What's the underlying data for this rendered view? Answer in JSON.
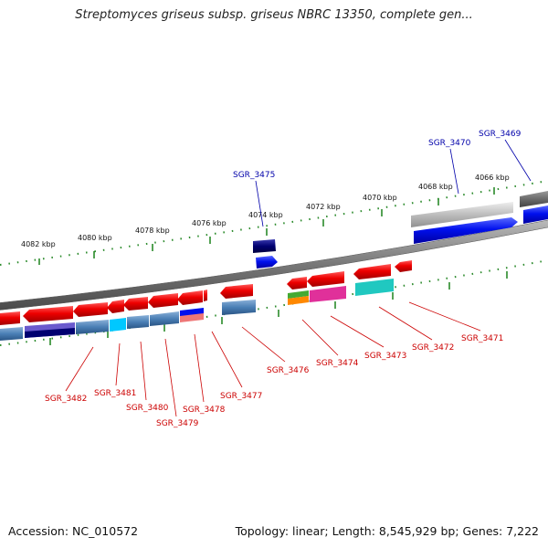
{
  "title": "Streptomyces griseus subsp. griseus NBRC 13350, complete gen...",
  "footer": {
    "accession": "Accession: NC_010572",
    "summary": "Topology: linear; Length: 8,545,929 bp; Genes: 7,222"
  },
  "scale_labels": [
    "4082 kbp",
    "4080 kbp",
    "4078 kbp",
    "4076 kbp",
    "4074 kbp",
    "4072 kbp",
    "4070 kbp",
    "4068 kbp",
    "4066 kbp"
  ],
  "gene_labels_forward": [
    "SGR_3475",
    "SGR_3470",
    "SGR_3469"
  ],
  "gene_labels_reverse": [
    "SGR_3482",
    "SGR_3481",
    "SGR_3480",
    "SGR_3479",
    "SGR_3478",
    "SGR_3477",
    "SGR_3476",
    "SGR_3474",
    "SGR_3473",
    "SGR_3472",
    "SGR_3471"
  ],
  "colors": {
    "forward_label": "#0000aa",
    "reverse_label": "#cc0000",
    "backbone": "#888888",
    "tick": "#2a8a2a",
    "gene_red": "#ee0000",
    "gene_blue": "#0010ee",
    "gene_navy": "#000070",
    "gene_gray": "#b8b8b8",
    "gene_darkgray": "#6a6a6a",
    "cog_steelblue": "#4a7fb5",
    "cog_slate": "#6a5acd",
    "cog_cyan": "#00c8ff",
    "cog_pink": "#e0309a",
    "cog_teal": "#20c8c0",
    "cog_green": "#44aa33",
    "cog_orange": "#ff8800",
    "cog_salmon": "#ee7777"
  }
}
